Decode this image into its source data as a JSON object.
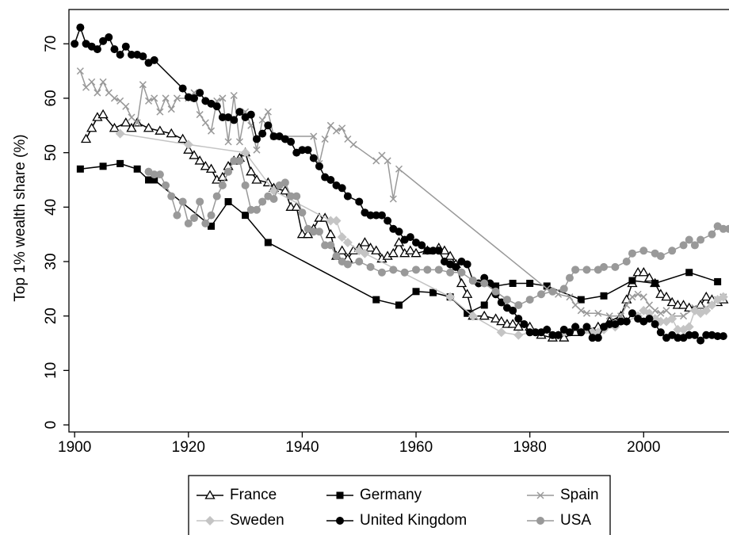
{
  "chart_data": {
    "type": "line",
    "y_label": "Top 1% wealth share (%)",
    "xlim": [
      1899,
      2015
    ],
    "xticks": [
      1900,
      1920,
      1940,
      1960,
      1980,
      2000
    ],
    "ylim": [
      -1.3,
      76.3
    ],
    "yticks": [
      0,
      10,
      20,
      30,
      40,
      50,
      60,
      70
    ],
    "grid": true,
    "legend": "bottom",
    "series": [
      {
        "name": "France",
        "color": "#000000",
        "marker": "triangle-open",
        "x": [
          1902,
          1903,
          1904,
          1905,
          1907,
          1909,
          1910,
          1911,
          1913,
          1915,
          1917,
          1919,
          1920,
          1921,
          1922,
          1923,
          1924,
          1925,
          1926,
          1927,
          1928,
          1929,
          1930,
          1931,
          1932,
          1934,
          1935,
          1937,
          1938,
          1939,
          1940,
          1941,
          1942,
          1943,
          1944,
          1945,
          1946,
          1947,
          1948,
          1949,
          1950,
          1951,
          1952,
          1953,
          1954,
          1955,
          1956,
          1957,
          1958,
          1959,
          1960,
          1962,
          1964,
          1965,
          1966,
          1967,
          1968,
          1969,
          1970,
          1972,
          1974,
          1975,
          1976,
          1977,
          1978,
          1980,
          1982,
          1984,
          1986,
          1988,
          1990,
          1992,
          1994,
          1996,
          1997,
          1998,
          1999,
          2000,
          2001,
          2002,
          2003,
          2004,
          2005,
          2006,
          2007,
          2008,
          2010,
          2011,
          2012,
          2013,
          2014
        ],
        "values": [
          52.5,
          54.5,
          56.5,
          57,
          54.5,
          55.5,
          54.5,
          55.5,
          54.5,
          54,
          53.5,
          52.5,
          50.5,
          49.5,
          48.5,
          47.5,
          47,
          45,
          45.5,
          47.5,
          48.5,
          49,
          50,
          46.5,
          45,
          44.5,
          43.5,
          43,
          40,
          40,
          35,
          35,
          36,
          38,
          38,
          35,
          31,
          32,
          30.5,
          32,
          32.5,
          33.5,
          32.5,
          32,
          30.5,
          31,
          31.5,
          33.5,
          31.5,
          32,
          31.5,
          32,
          32.5,
          32,
          31,
          29.5,
          26,
          24,
          20,
          20,
          19.5,
          19,
          18.5,
          18.5,
          18,
          18,
          16.5,
          16,
          16,
          17,
          17.5,
          18,
          19,
          20,
          23,
          26,
          28,
          28,
          27,
          26,
          24,
          23.5,
          22.5,
          22,
          22,
          21.5,
          22,
          23.5,
          23,
          22.5,
          23
        ]
      },
      {
        "name": "Germany",
        "color": "#000000",
        "marker": "square",
        "x": [
          1901,
          1905,
          1908,
          1911,
          1913,
          1914,
          1924,
          1927,
          1930,
          1934,
          1953,
          1957,
          1960,
          1963,
          1966,
          1969,
          1972,
          1974,
          1977,
          1980,
          1983,
          1989,
          1993,
          1998,
          2002,
          2008,
          2013
        ],
        "values": [
          47,
          47.5,
          48,
          47,
          45,
          45,
          36.5,
          41,
          38.5,
          33.5,
          23,
          22,
          24.5,
          24.3,
          23.5,
          20.5,
          22,
          25.5,
          26,
          26,
          25.5,
          23,
          23.7,
          26.5,
          26,
          28,
          26.3
        ]
      },
      {
        "name": "Spain",
        "color": "#999999",
        "marker": "cross",
        "x": [
          1901,
          1902,
          1903,
          1904,
          1905,
          1906,
          1907,
          1908,
          1909,
          1910,
          1911,
          1912,
          1913,
          1914,
          1915,
          1916,
          1917,
          1918,
          1920,
          1921,
          1922,
          1923,
          1924,
          1925,
          1926,
          1927,
          1928,
          1929,
          1930,
          1931,
          1932,
          1933,
          1934,
          1935,
          1942,
          1943,
          1944,
          1945,
          1946,
          1947,
          1948,
          1949,
          1953,
          1954,
          1955,
          1956,
          1957,
          1983,
          1985,
          1987,
          1988,
          1989,
          1990,
          1992,
          1994,
          1996,
          1997,
          1998,
          1999,
          2000,
          2001,
          2002,
          2003,
          2004,
          2005,
          2007,
          2009,
          2011,
          2013,
          2014
        ],
        "values": [
          65,
          62,
          63,
          61,
          63,
          61,
          60,
          59.5,
          58.5,
          56.5,
          55.5,
          62.5,
          59.5,
          60,
          57.5,
          60,
          58,
          60,
          60,
          61,
          57,
          55.5,
          54,
          59.5,
          60,
          52,
          60.5,
          52,
          57.5,
          55,
          50.5,
          56,
          57.5,
          53,
          53,
          48,
          52.5,
          55,
          54,
          54.5,
          52.5,
          51.5,
          48.5,
          49.5,
          48.5,
          41.5,
          47,
          25,
          24,
          23.5,
          22,
          21,
          20.5,
          20.5,
          20,
          20,
          22,
          23.5,
          24,
          23.5,
          22,
          21,
          20.5,
          21,
          20,
          20,
          21.5,
          21.5,
          23,
          23.5
        ]
      },
      {
        "name": "Sweden",
        "color": "#c4c4c4",
        "marker": "diamond",
        "x": [
          1908,
          1920,
          1930,
          1935,
          1945,
          1946,
          1947,
          1948,
          1950,
          1951,
          1966,
          1970,
          1975,
          1978,
          1983,
          1985,
          1986,
          1988,
          1990,
          1991,
          1992,
          1993,
          1995,
          1997,
          1999,
          2000,
          2001,
          2002,
          2003,
          2004,
          2005,
          2006,
          2007,
          2008,
          2009,
          2010,
          2011,
          2012,
          2013,
          2014
        ],
        "values": [
          53.5,
          51.5,
          50,
          43,
          37.5,
          37.5,
          34.5,
          33.5,
          32,
          31.5,
          23.5,
          20,
          17,
          16.5,
          17.5,
          16.5,
          17,
          18,
          17.5,
          17,
          17,
          17.5,
          18,
          19,
          20,
          21,
          20.5,
          19.5,
          19,
          19,
          19.5,
          17.5,
          17.5,
          18,
          21,
          20.5,
          21,
          22,
          23,
          23.5
        ]
      },
      {
        "name": "United Kingdom",
        "color": "#000000",
        "marker": "circle",
        "x": [
          1900,
          1901,
          1902,
          1903,
          1904,
          1905,
          1906,
          1907,
          1908,
          1909,
          1910,
          1911,
          1912,
          1913,
          1914,
          1919,
          1920,
          1921,
          1922,
          1923,
          1924,
          1925,
          1926,
          1927,
          1928,
          1929,
          1930,
          1931,
          1932,
          1933,
          1934,
          1935,
          1936,
          1937,
          1938,
          1939,
          1940,
          1941,
          1942,
          1943,
          1944,
          1945,
          1946,
          1947,
          1948,
          1950,
          1951,
          1952,
          1953,
          1954,
          1955,
          1956,
          1957,
          1958,
          1959,
          1960,
          1961,
          1962,
          1963,
          1964,
          1965,
          1966,
          1967,
          1968,
          1969,
          1970,
          1971,
          1972,
          1973,
          1974,
          1975,
          1976,
          1977,
          1978,
          1979,
          1980,
          1981,
          1982,
          1983,
          1984,
          1985,
          1986,
          1987,
          1988,
          1989,
          1990,
          1991,
          1992,
          1993,
          1994,
          1995,
          1996,
          1997,
          1998,
          1999,
          2000,
          2001,
          2002,
          2003,
          2004,
          2005,
          2006,
          2007,
          2008,
          2009,
          2010,
          2011,
          2012,
          2013,
          2014
        ],
        "values": [
          70,
          73,
          70,
          69.5,
          69,
          70.5,
          71.2,
          69,
          68,
          69.5,
          68,
          68,
          67.7,
          66.5,
          67,
          61.8,
          60.2,
          60,
          61,
          59.5,
          59,
          58.5,
          56.5,
          56.5,
          56,
          57.5,
          56.5,
          57,
          52.5,
          53.5,
          55,
          53,
          53,
          52.5,
          52,
          50,
          50.5,
          50.5,
          49,
          47.5,
          45.5,
          45,
          44,
          43.5,
          42,
          41,
          39,
          38.5,
          38.5,
          38.5,
          37.5,
          36,
          35.5,
          34,
          34.5,
          33.5,
          33,
          32,
          32,
          32,
          30,
          29.5,
          29,
          30,
          29.5,
          26.5,
          26,
          27,
          26,
          24,
          22.5,
          21.5,
          21,
          19.5,
          18.5,
          17,
          17,
          17,
          17.5,
          16.5,
          16.5,
          17.5,
          17,
          18,
          17,
          18,
          16,
          16,
          18,
          18.5,
          18.5,
          19,
          19,
          20.5,
          19.5,
          19,
          19.5,
          18.5,
          17,
          16,
          16.5,
          16,
          16,
          16.5,
          16.5,
          15.5,
          16.5,
          16.5,
          16.3,
          16.3
        ]
      },
      {
        "name": "USA",
        "color": "#999999",
        "marker": "circle",
        "x": [
          1913,
          1914,
          1915,
          1916,
          1917,
          1918,
          1919,
          1920,
          1921,
          1922,
          1923,
          1924,
          1925,
          1926,
          1927,
          1928,
          1929,
          1930,
          1931,
          1932,
          1933,
          1934,
          1935,
          1936,
          1937,
          1938,
          1939,
          1940,
          1941,
          1942,
          1943,
          1944,
          1945,
          1946,
          1947,
          1948,
          1950,
          1952,
          1954,
          1956,
          1958,
          1960,
          1962,
          1964,
          1966,
          1968,
          1970,
          1972,
          1974,
          1976,
          1978,
          1980,
          1982,
          1984,
          1986,
          1987,
          1988,
          1990,
          1992,
          1993,
          1995,
          1997,
          1998,
          2000,
          2002,
          2003,
          2005,
          2007,
          2008,
          2009,
          2010,
          2012,
          2013,
          2014,
          2015
        ],
        "values": [
          46.5,
          46,
          46,
          44,
          42,
          38.5,
          41,
          37,
          38,
          41,
          37,
          38.5,
          42,
          44,
          46.5,
          48.5,
          48.5,
          44,
          39.5,
          39.5,
          41,
          42,
          41.5,
          44,
          44.5,
          42,
          42,
          39,
          36,
          35.5,
          35.5,
          33,
          33,
          31,
          30,
          29.5,
          30,
          29,
          28,
          28.5,
          28,
          28.5,
          28.5,
          28.5,
          28,
          28,
          26.5,
          26,
          24.5,
          23,
          22,
          23,
          24,
          24.5,
          25,
          27,
          28.5,
          28.5,
          28.5,
          29,
          29,
          30,
          31.5,
          32,
          31.5,
          31,
          32,
          33,
          34,
          33,
          34,
          35,
          36.5,
          36,
          36
        ]
      }
    ]
  }
}
